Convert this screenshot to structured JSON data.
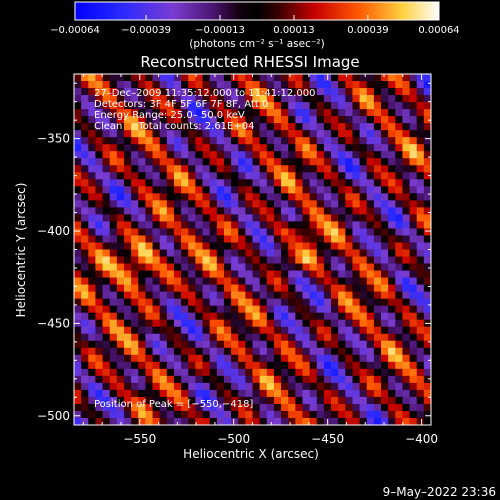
{
  "chart_data": {
    "type": "heatmap",
    "title": "Reconstructed RHESSI Image",
    "xlabel": "Heliocentric X (arcsec)",
    "ylabel": "Heliocentric Y (arcsec)",
    "xlim": [
      -585,
      -395
    ],
    "ylim": [
      -505,
      -315
    ],
    "x_ticks": [
      -550,
      -500,
      -450,
      -400
    ],
    "y_ticks": [
      -350,
      -400,
      -450,
      -500
    ],
    "x_tick_labels": [
      "−550",
      "−500",
      "−450",
      "−400"
    ],
    "y_tick_labels": [
      "−350",
      "−400",
      "−450",
      "−500"
    ],
    "colorbar": {
      "range": [
        -0.00064,
        0.00064
      ],
      "ticks": [
        -0.00064,
        -0.00039,
        -0.00013,
        0.00013,
        0.00039,
        0.00064
      ],
      "tick_labels": [
        "−0.00064",
        "−0.00039",
        "−0.00013",
        "0.00013",
        "0.00039",
        "0.00064"
      ],
      "unit_label": "(photons cm⁻² s⁻¹ asec⁻²)"
    },
    "annotations": [
      "27–Dec–2009 11:35:12.000 to 11:41:12.000",
      "Detectors: 3F 4F 5F 6F 7F 8F, Att 0",
      "Energy Range: 25.0– 50.0 keV",
      "Clean     Total counts: 2.61E+04"
    ],
    "peak_label": "Position of Peak = [−550,−418]",
    "peak": [
      -550,
      -418
    ],
    "timestamp": "9–May–2022 23:36",
    "colors": {
      "background": "#000000",
      "text": "#ffffff"
    }
  }
}
